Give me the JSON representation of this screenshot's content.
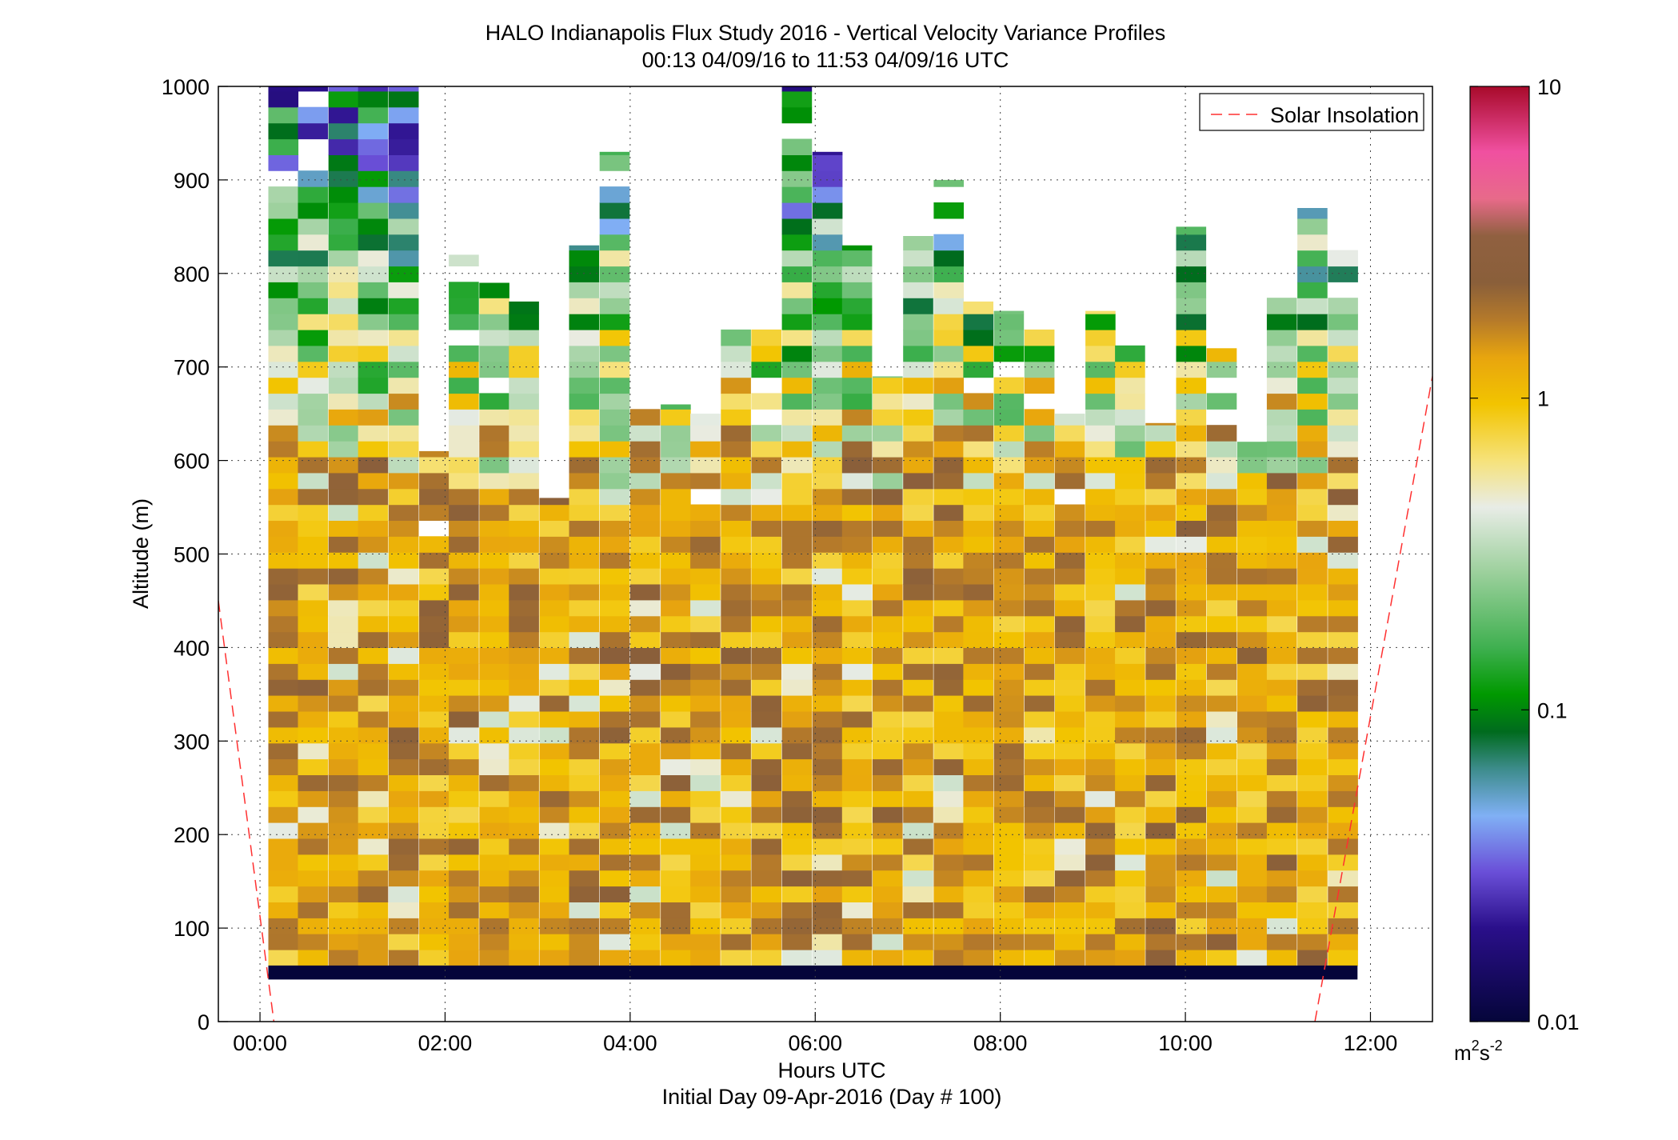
{
  "chart_data": {
    "type": "heatmap",
    "title": "HALO Indianapolis Flux Study 2016 - Vertical Velocity Variance Profiles",
    "subtitle": "00:13 04/09/16 to 11:53 04/09/16  UTC",
    "xlabel": "Hours UTC",
    "xlabel2": "Initial Day 09-Apr-2016 (Day # 100)",
    "ylabel": "Altitude (m)",
    "x_unit": "hours UTC",
    "xlim": [
      -0.45,
      12.67
    ],
    "ylim": [
      0,
      1000
    ],
    "x_ticks": [
      {
        "value": 0,
        "label": "00:00"
      },
      {
        "value": 2,
        "label": "02:00"
      },
      {
        "value": 4,
        "label": "04:00"
      },
      {
        "value": 6,
        "label": "06:00"
      },
      {
        "value": 8,
        "label": "08:00"
      },
      {
        "value": 10,
        "label": "10:00"
      },
      {
        "value": 12,
        "label": "12:00"
      }
    ],
    "y_ticks": [
      0,
      100,
      200,
      300,
      400,
      500,
      600,
      700,
      800,
      900,
      1000
    ],
    "grid": true,
    "colorbar": {
      "scale": "log",
      "min": 0.01,
      "max": 10,
      "ticks": [
        {
          "value": 0.01,
          "label": "0.01"
        },
        {
          "value": 0.1,
          "label": "0.1"
        },
        {
          "value": 1,
          "label": "1"
        },
        {
          "value": 10,
          "label": "10"
        }
      ],
      "unit_base": "m",
      "unit_sup1": "2",
      "unit_mid": "s",
      "unit_sup2": "-2",
      "stops": [
        [
          0.0,
          "#05053a"
        ],
        [
          0.1,
          "#2a0f8a"
        ],
        [
          0.16,
          "#6a4fd8"
        ],
        [
          0.22,
          "#80b0f5"
        ],
        [
          0.27,
          "#3d8c8c"
        ],
        [
          0.31,
          "#006b1e"
        ],
        [
          0.35,
          "#009900"
        ],
        [
          0.4,
          "#3fb050"
        ],
        [
          0.48,
          "#9cd09c"
        ],
        [
          0.55,
          "#e8ece6"
        ],
        [
          0.6,
          "#f6e27a"
        ],
        [
          0.66,
          "#f2c400"
        ],
        [
          0.71,
          "#e8a50e"
        ],
        [
          0.75,
          "#b57a2a"
        ],
        [
          0.79,
          "#8a5f3a"
        ],
        [
          0.84,
          "#906040"
        ],
        [
          0.88,
          "#e86a8a"
        ],
        [
          0.93,
          "#f050a0"
        ],
        [
          1.0,
          "#a80a2a"
        ]
      ]
    },
    "legend": {
      "entries": [
        {
          "name": "Solar Insolation",
          "style": "dashed",
          "color": "#ff3030"
        }
      ],
      "placement": "top-right"
    },
    "solar_insolation": [
      {
        "x": [
          -0.45,
          0.15
        ],
        "y": [
          450,
          0
        ]
      },
      {
        "x": [
          11.4,
          12.67
        ],
        "y": [
          0,
          690
        ]
      }
    ],
    "profile_times": [
      0.25,
      0.57,
      0.9,
      1.22,
      1.55,
      1.88,
      2.2,
      2.53,
      2.85,
      3.18,
      3.5,
      3.83,
      4.16,
      4.49,
      4.81,
      5.14,
      5.47,
      5.8,
      6.13,
      6.45,
      6.78,
      7.11,
      7.44,
      7.76,
      8.09,
      8.42,
      8.75,
      9.08,
      9.4,
      9.73,
      10.06,
      10.39,
      10.72,
      11.04,
      11.37,
      11.7
    ],
    "profile_tops": [
      1000,
      1000,
      1000,
      1000,
      1000,
      610,
      820,
      790,
      770,
      560,
      830,
      930,
      660,
      660,
      650,
      740,
      740,
      1000,
      930,
      830,
      690,
      840,
      900,
      770,
      760,
      740,
      650,
      760,
      740,
      640,
      850,
      720,
      620,
      780,
      870,
      840
    ],
    "altitude_bin_m": 17,
    "base_band_m": [
      45,
      60
    ]
  }
}
